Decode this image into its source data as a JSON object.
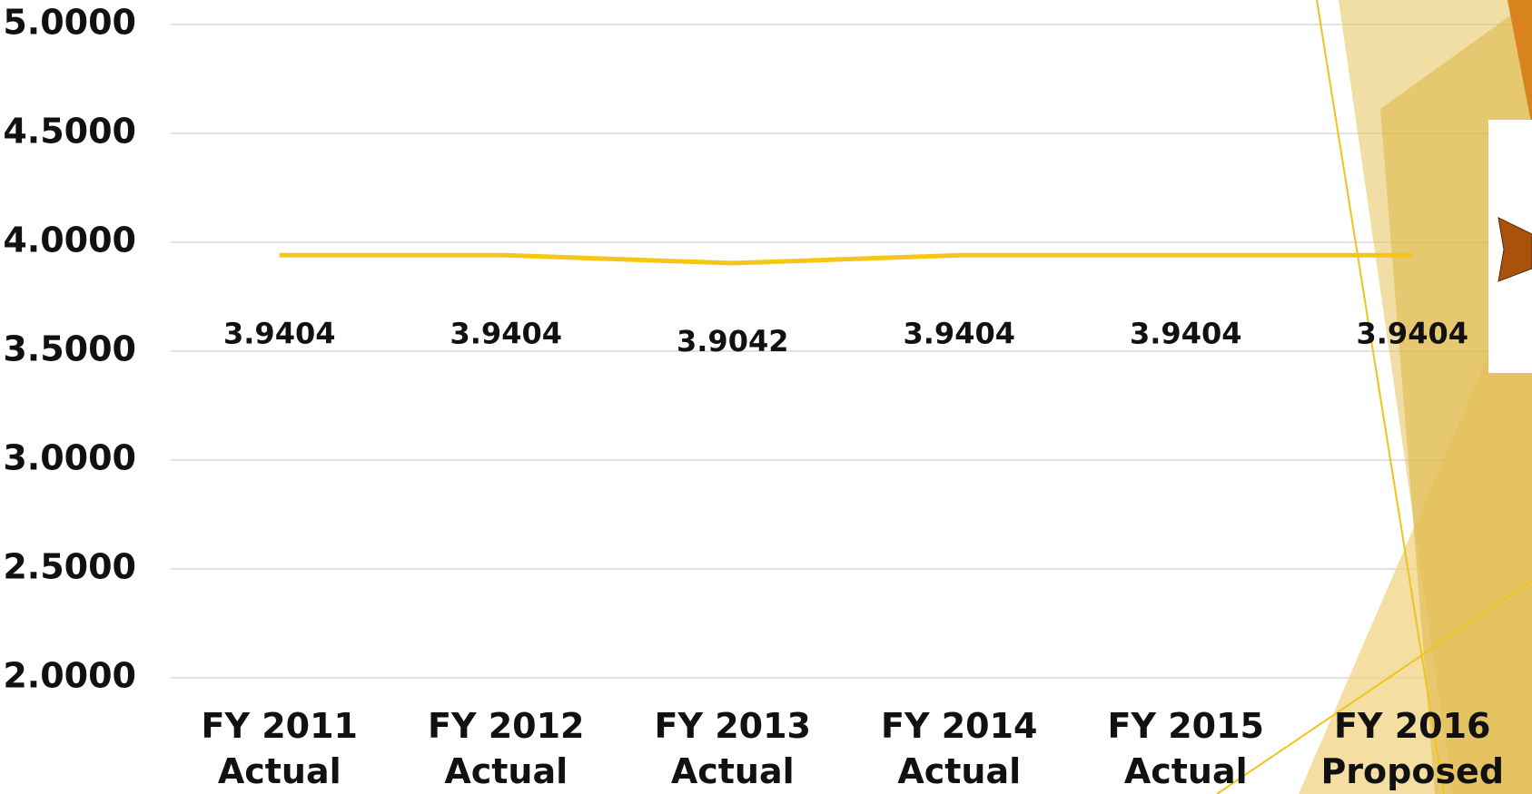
{
  "chart_data": {
    "type": "line",
    "categories": [
      "FY 2011\nActual",
      "FY 2012\nActual",
      "FY 2013\nActual",
      "FY 2014\nActual",
      "FY 2015\nActual",
      "FY 2016\nProposed"
    ],
    "series": [
      {
        "color": "#f5c518",
        "values": [
          3.9404,
          3.9404,
          3.9042,
          3.9404,
          3.9404,
          3.9404
        ]
      }
    ],
    "ylim": [
      2,
      5
    ],
    "yticks": [
      {
        "value": 2,
        "label": "2.0000"
      },
      {
        "value": 2.5,
        "label": "2.5000"
      },
      {
        "value": 3,
        "label": "3.0000"
      },
      {
        "value": 3.5,
        "label": "3.5000"
      },
      {
        "value": 4,
        "label": "4.0000"
      },
      {
        "value": 4.5,
        "label": "4.5000"
      },
      {
        "value": 5,
        "label": "5.0000"
      }
    ],
    "grid": true,
    "data_labels": true
  }
}
